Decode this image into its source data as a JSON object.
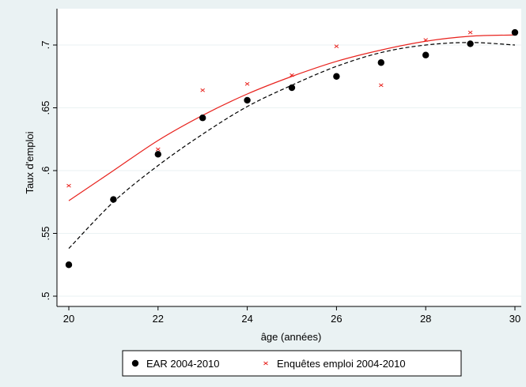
{
  "chart_data": {
    "type": "scatter",
    "xlabel": "âge (années)",
    "ylabel": "Taux d'emploi",
    "xlim": [
      20,
      30
    ],
    "ylim": [
      0.5,
      0.71
    ],
    "x_ticks": [
      20,
      22,
      24,
      26,
      28,
      30
    ],
    "x_tick_labels": [
      "20",
      "22",
      "24",
      "26",
      "28",
      "30"
    ],
    "y_ticks": [
      0.5,
      0.55,
      0.6,
      0.65,
      0.7
    ],
    "y_tick_labels": [
      ".5",
      ".55",
      ".6",
      ".65",
      ".7"
    ],
    "grid": true,
    "legend_position": "bottom",
    "series": [
      {
        "name": "EAR 2004-2010",
        "marker": "filled-circle",
        "color": "#000000",
        "x": [
          20,
          21,
          22,
          23,
          24,
          25,
          26,
          27,
          28,
          29,
          30
        ],
        "y": [
          0.525,
          0.577,
          0.613,
          0.642,
          0.656,
          0.666,
          0.675,
          0.686,
          0.692,
          0.701,
          0.71
        ]
      },
      {
        "name": "Enquêtes emploi 2004-2010",
        "marker": "x",
        "color": "#e8231e",
        "x": [
          20,
          21,
          22,
          23,
          24,
          25,
          26,
          27,
          28,
          29,
          30
        ],
        "y": [
          0.588,
          0.577,
          0.617,
          0.664,
          0.669,
          0.676,
          0.699,
          0.668,
          0.704,
          0.71,
          0.71
        ]
      }
    ],
    "fit_lines": [
      {
        "style": "dashed",
        "color": "#000000",
        "x": [
          20,
          21,
          22,
          23,
          24,
          25,
          26,
          27,
          28,
          29,
          30
        ],
        "y": [
          0.538,
          0.575,
          0.604,
          0.629,
          0.651,
          0.668,
          0.683,
          0.694,
          0.7,
          0.702,
          0.7
        ]
      },
      {
        "style": "solid",
        "color": "#e8231e",
        "x": [
          20,
          21,
          22,
          23,
          24,
          25,
          26,
          27,
          28,
          29,
          30
        ],
        "y": [
          0.576,
          0.6,
          0.624,
          0.644,
          0.661,
          0.675,
          0.687,
          0.696,
          0.703,
          0.707,
          0.708
        ]
      }
    ]
  }
}
